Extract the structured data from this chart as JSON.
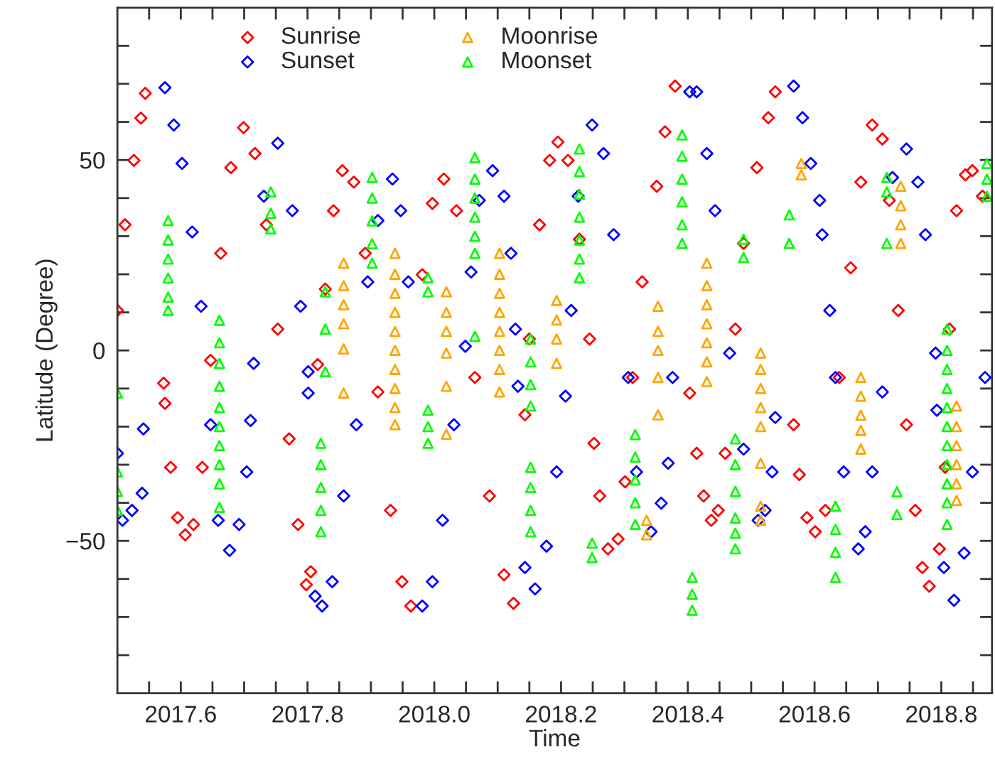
{
  "chart_data": {
    "type": "scatter",
    "xlabel": "Time",
    "ylabel": "Latitude (Degree)",
    "xlim": [
      2017.5,
      2018.88
    ],
    "ylim": [
      -90,
      90
    ],
    "xticks": [
      {
        "value": 2017.55,
        "label": null
      },
      {
        "value": 2017.6,
        "label": "2017.6"
      },
      {
        "value": 2017.65,
        "label": null
      },
      {
        "value": 2017.7,
        "label": null
      },
      {
        "value": 2017.75,
        "label": null
      },
      {
        "value": 2017.8,
        "label": "2017.8"
      },
      {
        "value": 2017.85,
        "label": null
      },
      {
        "value": 2017.9,
        "label": null
      },
      {
        "value": 2017.95,
        "label": null
      },
      {
        "value": 2018.0,
        "label": "2018.0"
      },
      {
        "value": 2018.05,
        "label": null
      },
      {
        "value": 2018.1,
        "label": null
      },
      {
        "value": 2018.15,
        "label": null
      },
      {
        "value": 2018.2,
        "label": "2018.2"
      },
      {
        "value": 2018.25,
        "label": null
      },
      {
        "value": 2018.3,
        "label": null
      },
      {
        "value": 2018.35,
        "label": null
      },
      {
        "value": 2018.4,
        "label": "2018.4"
      },
      {
        "value": 2018.45,
        "label": null
      },
      {
        "value": 2018.5,
        "label": null
      },
      {
        "value": 2018.55,
        "label": null
      },
      {
        "value": 2018.6,
        "label": "2018.6"
      },
      {
        "value": 2018.65,
        "label": null
      },
      {
        "value": 2018.7,
        "label": null
      },
      {
        "value": 2018.75,
        "label": null
      },
      {
        "value": 2018.8,
        "label": "2018.8"
      },
      {
        "value": 2018.85,
        "label": null
      }
    ],
    "yticks": [
      {
        "value": -80,
        "label": null
      },
      {
        "value": -70,
        "label": null
      },
      {
        "value": -60,
        "label": null
      },
      {
        "value": -50,
        "label": "−50"
      },
      {
        "value": -40,
        "label": null
      },
      {
        "value": -30,
        "label": null
      },
      {
        "value": -20,
        "label": null
      },
      {
        "value": -10,
        "label": null
      },
      {
        "value": 0,
        "label": "0"
      },
      {
        "value": 10,
        "label": null
      },
      {
        "value": 20,
        "label": null
      },
      {
        "value": 30,
        "label": null
      },
      {
        "value": 40,
        "label": null
      },
      {
        "value": 50,
        "label": "50"
      },
      {
        "value": 60,
        "label": null
      },
      {
        "value": 70,
        "label": null
      },
      {
        "value": 80,
        "label": null
      }
    ],
    "grid": false,
    "legend": "top left",
    "series": [
      {
        "name": "Sunrise",
        "color": "#ff0000",
        "marker": "diamond",
        "x": [
          2017.5,
          2017.512,
          2017.526,
          2017.537,
          2017.544,
          2017.573,
          2017.575,
          2017.584,
          2017.595,
          2017.607,
          2017.62,
          2017.634,
          2017.647,
          2017.663,
          2017.679,
          2017.699,
          2017.717,
          2017.735,
          2017.753,
          2017.771,
          2017.785,
          2017.798,
          2017.805,
          2017.816,
          2017.828,
          2017.841,
          2017.855,
          2017.873,
          2017.891,
          2017.911,
          2017.931,
          2017.949,
          2017.963,
          2017.981,
          2017.997,
          2018.015,
          2018.035,
          2018.064,
          2018.087,
          2018.11,
          2018.125,
          2018.143,
          2018.15,
          2018.166,
          2018.182,
          2018.195,
          2018.211,
          2018.229,
          2018.245,
          2018.252,
          2018.261,
          2018.274,
          2018.29,
          2018.301,
          2018.313,
          2018.328,
          2018.351,
          2018.364,
          2018.38,
          2018.403,
          2018.414,
          2018.425,
          2018.437,
          2018.448,
          2018.459,
          2018.475,
          2018.488,
          2018.509,
          2018.527,
          2018.538,
          2018.567,
          2018.576,
          2018.588,
          2018.601,
          2018.617,
          2018.639,
          2018.657,
          2018.673,
          2018.691,
          2018.707,
          2018.718,
          2018.732,
          2018.745,
          2018.759,
          2018.77,
          2018.781,
          2018.797,
          2018.806,
          2018.813,
          2018.824,
          2018.838,
          2018.849,
          2018.865
        ],
        "values": [
          10.5,
          33,
          49.9,
          61,
          67.5,
          -8.6,
          -13.9,
          -30.7,
          -43.9,
          -48.4,
          -45.7,
          -30.7,
          -2.6,
          25.5,
          48,
          58.5,
          51.7,
          33,
          5.6,
          -23.2,
          -45.7,
          -61.5,
          -58.1,
          -3.7,
          16.1,
          36.7,
          47.2,
          44.2,
          25.5,
          -10.9,
          -42,
          -60.7,
          -67.1,
          19.9,
          38.6,
          45,
          36.7,
          -7.1,
          -38.2,
          -58.9,
          -66.4,
          -16.9,
          3,
          33,
          49.9,
          54.7,
          49.9,
          29.2,
          3,
          -24.4,
          -38.2,
          -52.1,
          -49.5,
          -34.5,
          -7.1,
          18,
          43.1,
          57.4,
          69.4,
          -11.2,
          -27,
          -38.2,
          -44.6,
          -42,
          -27,
          5.6,
          28.1,
          48,
          61.1,
          67.9,
          -19.5,
          -32.6,
          -43.9,
          -47.6,
          -42,
          -7.1,
          21.7,
          44.2,
          59.2,
          55.5,
          39.4,
          10.5,
          -19.5,
          -42,
          -57,
          -61.9,
          -52.1,
          -30.7,
          5.6,
          36.7,
          46.1,
          47.2,
          40.5
        ]
      },
      {
        "name": "Sunset",
        "color": "#0000ff",
        "marker": "diamond",
        "x": [
          2017.5,
          2017.508,
          2017.523,
          2017.539,
          2017.541,
          2017.575,
          2017.589,
          2017.602,
          2017.618,
          2017.632,
          2017.647,
          2017.659,
          2017.677,
          2017.692,
          2017.704,
          2017.71,
          2017.715,
          2017.731,
          2017.753,
          2017.776,
          2017.789,
          2017.801,
          2017.801,
          2017.812,
          2017.823,
          2017.839,
          2017.857,
          2017.877,
          2017.895,
          2017.911,
          2017.934,
          2017.947,
          2017.959,
          2017.981,
          2017.997,
          2018.013,
          2018.031,
          2018.049,
          2018.058,
          2018.071,
          2018.092,
          2018.11,
          2018.121,
          2018.128,
          2018.132,
          2018.143,
          2018.159,
          2018.177,
          2018.193,
          2018.207,
          2018.216,
          2018.227,
          2018.249,
          2018.267,
          2018.283,
          2018.306,
          2018.319,
          2018.342,
          2018.358,
          2018.369,
          2018.376,
          2018.403,
          2018.414,
          2018.43,
          2018.443,
          2018.466,
          2018.488,
          2018.511,
          2018.522,
          2018.533,
          2018.538,
          2018.567,
          2018.581,
          2018.594,
          2018.608,
          2018.612,
          2018.624,
          2018.633,
          2018.646,
          2018.669,
          2018.68,
          2018.691,
          2018.707,
          2018.723,
          2018.745,
          2018.763,
          2018.775,
          2018.791,
          2018.793,
          2018.804,
          2018.82,
          2018.836,
          2018.849,
          2018.869
        ],
        "values": [
          -27,
          -44.6,
          -42,
          -37.5,
          -20.6,
          69,
          59.2,
          49.1,
          31.1,
          11.6,
          -19.5,
          -44.6,
          -52.5,
          -45.7,
          -31.9,
          -18.4,
          -3.4,
          40.5,
          54.4,
          36.7,
          11.6,
          -5.6,
          -11.2,
          -64.5,
          -67.1,
          -60.7,
          -38.2,
          -19.5,
          18,
          34.1,
          45,
          36.7,
          18,
          -67.1,
          -60.7,
          -44.6,
          -19.5,
          1.1,
          20.6,
          39.4,
          47.2,
          40.5,
          25.5,
          5.6,
          -9.4,
          -57,
          -62.6,
          -51.4,
          -31.9,
          -12,
          10.5,
          40.5,
          59.2,
          51.7,
          30.4,
          -7.1,
          -31.9,
          -47.6,
          -40.1,
          -29.6,
          -7.1,
          67.9,
          67.9,
          51.7,
          36.7,
          -0.7,
          -25.9,
          -44.6,
          -42,
          -31.9,
          -17.6,
          69.4,
          61.1,
          49.1,
          39.4,
          30.4,
          10.5,
          -7.1,
          -31.9,
          -52.1,
          -47.6,
          -31.9,
          -10.9,
          45.4,
          52.9,
          44.2,
          30.4,
          -0.7,
          -15.7,
          -57,
          -65.6,
          -53.2,
          -31.9,
          -7.1
        ]
      },
      {
        "name": "Moonrise",
        "color": "#ffa500",
        "marker": "triangle",
        "x": [
          2017.857,
          2017.857,
          2017.857,
          2017.857,
          2017.857,
          2017.857,
          2017.938,
          2017.938,
          2017.938,
          2017.938,
          2017.938,
          2017.938,
          2017.938,
          2017.938,
          2017.938,
          2017.938,
          2018.019,
          2018.019,
          2018.019,
          2018.019,
          2018.019,
          2018.019,
          2018.103,
          2018.103,
          2018.103,
          2018.103,
          2018.103,
          2018.103,
          2018.103,
          2018.103,
          2018.193,
          2018.193,
          2018.193,
          2018.193,
          2018.335,
          2018.335,
          2018.353,
          2018.353,
          2018.353,
          2018.353,
          2018.353,
          2018.43,
          2018.43,
          2018.43,
          2018.43,
          2018.43,
          2018.43,
          2018.43,
          2018.515,
          2018.515,
          2018.515,
          2018.515,
          2018.515,
          2018.515,
          2018.515,
          2018.515,
          2018.579,
          2018.579,
          2018.673,
          2018.673,
          2018.673,
          2018.673,
          2018.673,
          2018.736,
          2018.736,
          2018.736,
          2018.736,
          2018.824,
          2018.824,
          2018.824,
          2018.824,
          2018.824,
          2018.824
        ],
        "values": [
          22.9,
          17,
          12,
          7,
          0.4,
          -11.2,
          25.5,
          20,
          15,
          10,
          5,
          0,
          -5,
          -10,
          -15,
          -19.5,
          15.4,
          10,
          5,
          -0.7,
          -9.4,
          -22,
          25.5,
          20,
          15,
          10,
          5,
          0,
          -5,
          -10.9,
          13.1,
          8,
          3,
          -3.4,
          -44.6,
          -48.4,
          11.6,
          5,
          0,
          -7.1,
          -16.9,
          22.9,
          17,
          12,
          7,
          2,
          -3,
          -8.2,
          -0.7,
          -5,
          -10,
          -15,
          -20,
          -29.6,
          -40.9,
          -44.6,
          49.1,
          46.1,
          -7.1,
          -12,
          -17,
          -21,
          -25.9,
          43.1,
          38,
          33,
          28.1,
          -14.6,
          -20,
          -25,
          -30,
          -35,
          -39.4
        ]
      },
      {
        "name": "Moonset",
        "color": "#00ff00",
        "marker": "triangle",
        "x": [
          2017.5,
          2017.5,
          2017.5,
          2017.5,
          2017.58,
          2017.58,
          2017.58,
          2017.58,
          2017.58,
          2017.58,
          2017.661,
          2017.661,
          2017.661,
          2017.661,
          2017.661,
          2017.661,
          2017.661,
          2017.661,
          2017.661,
          2017.661,
          2017.742,
          2017.742,
          2017.742,
          2017.821,
          2017.821,
          2017.821,
          2017.821,
          2017.821,
          2017.828,
          2017.828,
          2017.828,
          2017.902,
          2017.902,
          2017.902,
          2017.902,
          2017.902,
          2017.99,
          2017.99,
          2017.99,
          2017.99,
          2017.99,
          2018.064,
          2018.064,
          2018.064,
          2018.064,
          2018.064,
          2018.064,
          2018.064,
          2018.152,
          2018.152,
          2018.152,
          2018.152,
          2018.152,
          2018.152,
          2018.152,
          2018.152,
          2018.229,
          2018.229,
          2018.229,
          2018.229,
          2018.229,
          2018.229,
          2018.229,
          2018.249,
          2018.249,
          2018.317,
          2018.317,
          2018.317,
          2018.317,
          2018.317,
          2018.391,
          2018.391,
          2018.391,
          2018.391,
          2018.391,
          2018.391,
          2018.407,
          2018.407,
          2018.407,
          2018.475,
          2018.475,
          2018.475,
          2018.475,
          2018.475,
          2018.475,
          2018.488,
          2018.488,
          2018.56,
          2018.56,
          2018.633,
          2018.633,
          2018.633,
          2018.633,
          2018.714,
          2018.714,
          2018.714,
          2018.73,
          2018.73,
          2018.809,
          2018.809,
          2018.809,
          2018.809,
          2018.809,
          2018.809,
          2018.809,
          2018.809,
          2018.809,
          2018.809,
          2018.809,
          2018.872,
          2018.872,
          2018.872
        ],
        "values": [
          -11.2,
          -31.9,
          -37,
          -42,
          34.1,
          29,
          24,
          19,
          14,
          10.5,
          7.9,
          2,
          -3.4,
          -9.4,
          -15,
          -20,
          -25,
          -30,
          -35,
          -41.2,
          41.6,
          36,
          31.9,
          -24.4,
          -30,
          -36,
          -42,
          -47.6,
          15.4,
          5.6,
          -5.6,
          45.4,
          40,
          34,
          28,
          22.9,
          19.1,
          15.4,
          -15.7,
          -20,
          -24.4,
          50.6,
          45,
          40,
          35,
          30,
          25.5,
          3.7,
          3,
          -3,
          -9,
          -14.6,
          -30.7,
          -36,
          -42,
          -47.6,
          52.9,
          47,
          41,
          35,
          29,
          24,
          19.1,
          -50.6,
          -54.4,
          -22.1,
          -28,
          -34,
          -40,
          -45.7,
          56.6,
          51,
          45,
          39,
          33,
          28.1,
          -59.6,
          -64,
          -68.2,
          -23.2,
          -30,
          -37,
          -44,
          -48,
          -52.1,
          29.2,
          24.4,
          35.6,
          28.1,
          -40.9,
          -47,
          -53,
          -59.6,
          45.4,
          41.6,
          28.1,
          -37.1,
          -43.1,
          5.6,
          0,
          -5,
          -10,
          -15,
          -20,
          -25,
          -30,
          -35,
          -40,
          -45.7,
          49.1,
          45,
          40.5
        ]
      }
    ]
  }
}
